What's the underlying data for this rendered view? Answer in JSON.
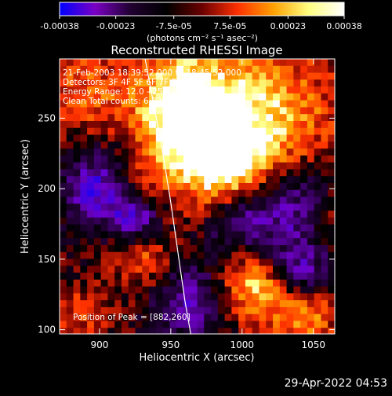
{
  "chart_data": {
    "type": "heatmap",
    "title": "Reconstructed RHESSI Image",
    "xlabel": "Heliocentric X (arcsec)",
    "ylabel": "Heliocentric Y (arcsec)",
    "xlim": [
      872,
      1065
    ],
    "ylim": [
      97,
      292
    ],
    "x_ticks": [
      900,
      950,
      1000,
      1050
    ],
    "y_ticks": [
      100,
      150,
      200,
      250
    ],
    "colorbar": {
      "range": [
        -0.00038,
        0.00038
      ],
      "tick_values": [
        -0.00038,
        -0.00023,
        -7.5e-05,
        7.5e-05,
        0.00023,
        0.00038
      ],
      "tick_labels": [
        "-0.00038",
        "-0.00023",
        "-7.5e-05",
        "7.5e-05",
        "0.00023",
        "0.00038"
      ],
      "unit_label": "(photons cm⁻² s⁻¹ asec⁻²)",
      "colors": [
        "#0000ff",
        "#7a00c4",
        "#200030",
        "#000000",
        "#6a0000",
        "#ff3000",
        "#ffa000",
        "#ffff80",
        "#ffffff"
      ]
    },
    "annotations": [
      "21-Feb-2003 18:39:52.000 to 18:45:52.000",
      "Detectors: 3F 4F 5F 6F 7F 8F, Att 0",
      "Energy Range: 12.0 - 25.0 keV",
      "Clean    Total counts: 6.82E+03"
    ],
    "peak_label": "Position of Peak = [882,260]",
    "peak": {
      "x": 882,
      "y": 260
    },
    "limb_curve": {
      "x": [
        932,
        938,
        944,
        950,
        955,
        960,
        964
      ],
      "y": [
        292,
        260,
        228,
        190,
        155,
        120,
        97
      ]
    }
  },
  "footer": {
    "date": "29-Apr-2022 04:53"
  }
}
